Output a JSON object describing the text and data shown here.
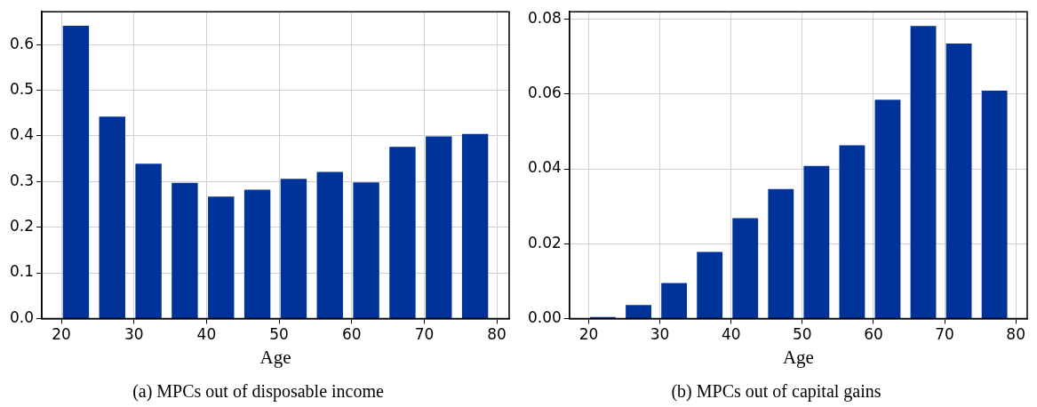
{
  "chart_data": [
    {
      "type": "bar",
      "title": "(a) MPCs out of disposable income",
      "xlabel": "Age",
      "x": [
        22,
        27,
        32,
        37,
        42,
        47,
        52,
        57,
        62,
        67,
        72,
        77
      ],
      "values": [
        0.641,
        0.442,
        0.339,
        0.297,
        0.267,
        0.282,
        0.306,
        0.321,
        0.298,
        0.376,
        0.399,
        0.404
      ],
      "color": "#003399",
      "xlim": [
        17.3,
        81.7
      ],
      "xticks": [
        20,
        30,
        40,
        50,
        60,
        70,
        80
      ],
      "ylim": [
        0,
        0.672
      ],
      "yticks": [
        {
          "value": 0,
          "label": "0.0"
        },
        0.1,
        0.2,
        0.3,
        0.4,
        0.5,
        0.6
      ],
      "grid": true,
      "legend": false
    },
    {
      "type": "bar",
      "title": "(b) MPCs out of capital gains",
      "xlabel": "Age",
      "x": [
        22,
        27,
        32,
        37,
        42,
        47,
        52,
        57,
        62,
        67,
        72,
        77
      ],
      "values": [
        0.0004,
        0.0036,
        0.0095,
        0.0178,
        0.0268,
        0.0346,
        0.0408,
        0.0463,
        0.0585,
        0.0782,
        0.0735,
        0.0609
      ],
      "color": "#003399",
      "xlim": [
        17.3,
        81.6
      ],
      "xticks": [
        20,
        30,
        40,
        50,
        60,
        70,
        80
      ],
      "ylim": [
        0,
        0.082
      ],
      "yticks": [
        {
          "value": 0,
          "label": "0.00"
        },
        0.02,
        0.04,
        0.06,
        0.08
      ],
      "grid": true,
      "legend": false
    }
  ]
}
